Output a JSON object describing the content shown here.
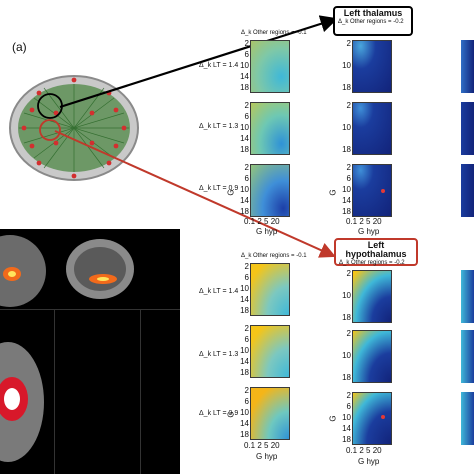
{
  "panel_a_label": "(a)",
  "left_callout": {
    "title": "Left thalamus",
    "subtitle": "Δ_k Other regions = -0.2"
  },
  "left_hyp_callout": {
    "title": "Left hypothalamus",
    "subtitle": "Δ_k Other regions = -0.2"
  },
  "top_col1_header": "Δ_k Other regions = -0.1",
  "bottom_col1_header": "Δ_k Other regions = -0.1",
  "row_labels": [
    "Δ_k LT = 1.4",
    "Δ_k LT = 1.3",
    "Δ_k LT = 0.9"
  ],
  "y_ticks": [
    "2",
    "6",
    "10",
    "14",
    "18"
  ],
  "x_ticks": "0.1 2  5  20",
  "x_axis_label": "G hyp",
  "y_axis_label": "G",
  "colors": {
    "arrow_black": "#000000",
    "arrow_red": "#c0392b",
    "heat_high": "#f5c518",
    "heat_mid": "#3fb8d8",
    "heat_low": "#12237a"
  }
}
